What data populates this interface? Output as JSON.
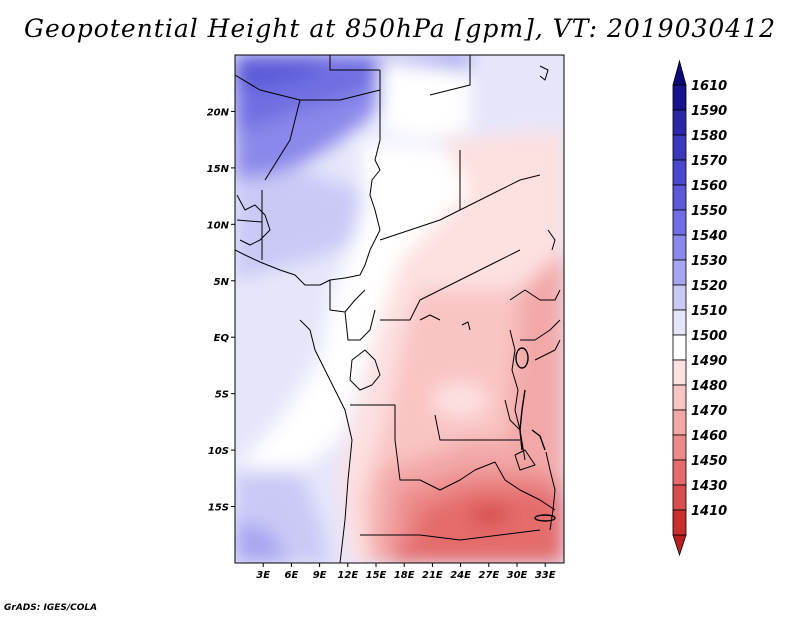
{
  "title": "Geopotential Height at 850hPa [gpm], VT: 2019030412",
  "credit": "GrADS: IGES/COLA",
  "map": {
    "lon_range": [
      0,
      35
    ],
    "lat_range": [
      -20,
      25
    ],
    "lat_ticks": [
      {
        "value": 20,
        "label": "20N"
      },
      {
        "value": 15,
        "label": "15N"
      },
      {
        "value": 10,
        "label": "10N"
      },
      {
        "value": 5,
        "label": "5N"
      },
      {
        "value": 0,
        "label": "EQ"
      },
      {
        "value": -5,
        "label": "5S"
      },
      {
        "value": -10,
        "label": "10S"
      },
      {
        "value": -15,
        "label": "15S"
      }
    ],
    "lon_ticks": [
      {
        "value": 3,
        "label": "3E"
      },
      {
        "value": 6,
        "label": "6E"
      },
      {
        "value": 9,
        "label": "9E"
      },
      {
        "value": 12,
        "label": "12E"
      },
      {
        "value": 15,
        "label": "15E"
      },
      {
        "value": 18,
        "label": "18E"
      },
      {
        "value": 21,
        "label": "21E"
      },
      {
        "value": 24,
        "label": "24E"
      },
      {
        "value": 27,
        "label": "27E"
      },
      {
        "value": 30,
        "label": "30E"
      },
      {
        "value": 33,
        "label": "33E"
      }
    ]
  },
  "colorbar": {
    "levels": [
      {
        "label": "1610",
        "color": "#16148c"
      },
      {
        "label": "1590",
        "color": "#2a28a8"
      },
      {
        "label": "1580",
        "color": "#3a38bc"
      },
      {
        "label": "1570",
        "color": "#4a48cc"
      },
      {
        "label": "1560",
        "color": "#5c5ad8"
      },
      {
        "label": "1550",
        "color": "#706ee2"
      },
      {
        "label": "1540",
        "color": "#8a88ea"
      },
      {
        "label": "1530",
        "color": "#a8a6f0"
      },
      {
        "label": "1520",
        "color": "#cac9f6"
      },
      {
        "label": "1510",
        "color": "#e6e6fb"
      },
      {
        "label": "1500",
        "color": "#ffffff"
      },
      {
        "label": "1490",
        "color": "#fde0e0"
      },
      {
        "label": "1480",
        "color": "#f9c4c4"
      },
      {
        "label": "1470",
        "color": "#f3a8a8"
      },
      {
        "label": "1460",
        "color": "#ec8a8a"
      },
      {
        "label": "1450",
        "color": "#e46c6c"
      },
      {
        "label": "1430",
        "color": "#d84e4e"
      },
      {
        "label": "1410",
        "color": "#c83030"
      }
    ],
    "top_arrow_color": "#0c0a78",
    "bottom_arrow_color": "#b82020"
  }
}
